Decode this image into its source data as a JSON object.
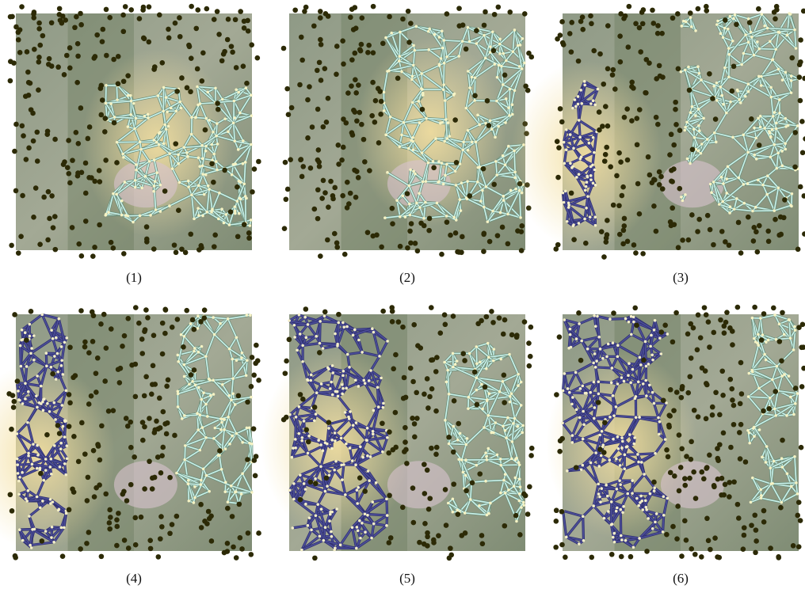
{
  "panels": [
    {
      "label": "(1)"
    },
    {
      "label": "(2)"
    },
    {
      "label": "(3)"
    },
    {
      "label": "(4)"
    },
    {
      "label": "(5)"
    },
    {
      "label": "(6)"
    }
  ]
}
